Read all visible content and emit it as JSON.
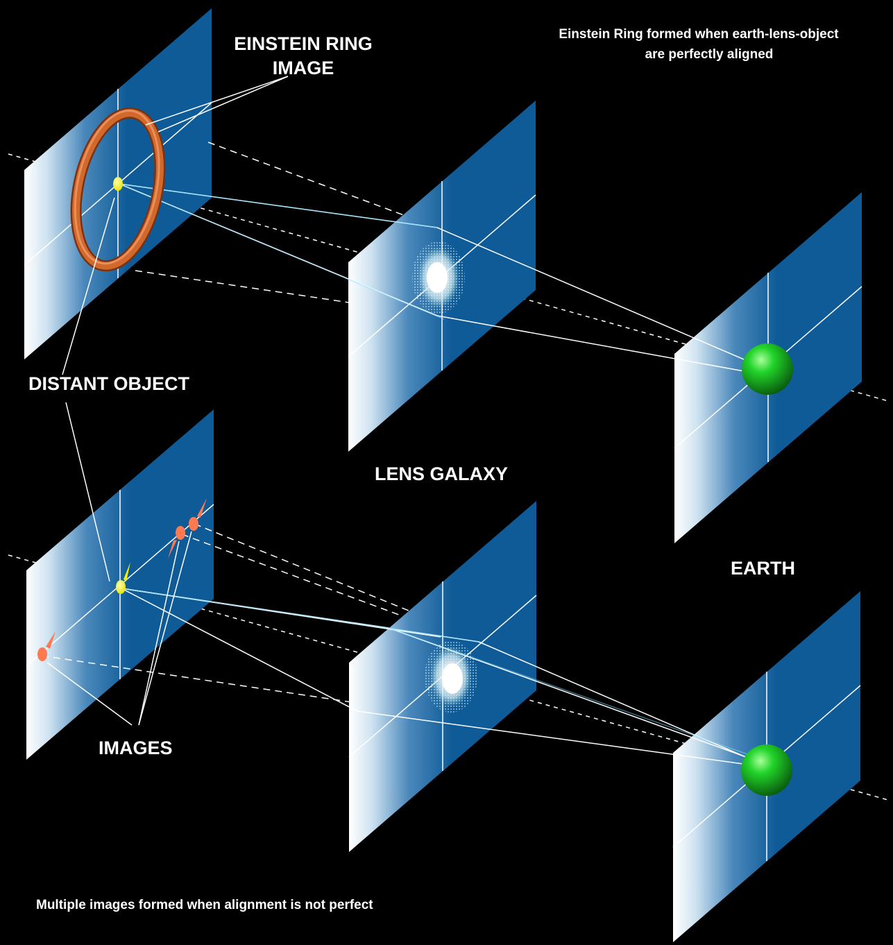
{
  "labels": {
    "einstein_ring_line1": "EINSTEIN RING",
    "einstein_ring_line2": "IMAGE",
    "caption_top_line1": "Einstein Ring formed when earth-lens-object",
    "caption_top_line2": "are perfectly aligned",
    "distant_object": "DISTANT OBJECT",
    "lens_galaxy": "LENS GALAXY",
    "earth": "EARTH",
    "images": "IMAGES",
    "caption_bottom": "Multiple images formed when alignment is not perfect"
  },
  "colors": {
    "background": "#000000",
    "panel": "#0f5b97",
    "panel_glow": "#ffffff",
    "ring": "#d2692c",
    "source": "#f4f000",
    "images": "#ff7a50",
    "earth": "#17c217",
    "light_ray": "#7fd9ff"
  }
}
